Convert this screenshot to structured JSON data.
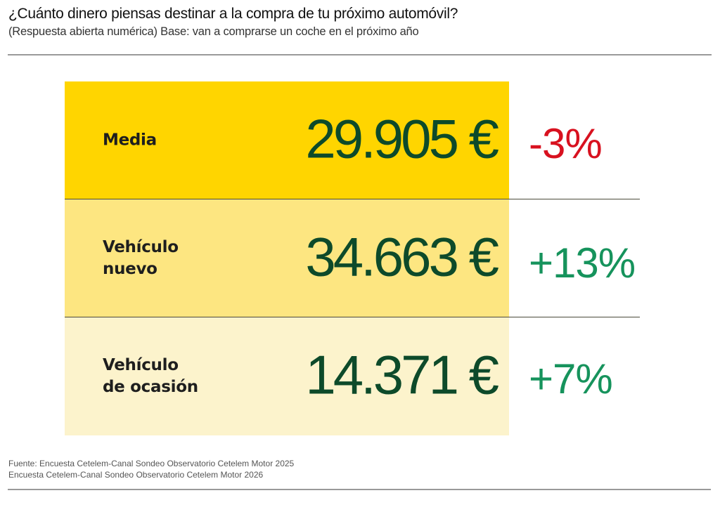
{
  "header": {
    "title": "¿Cuánto dinero piensas destinar a la compra de tu próximo automóvil?",
    "subtitle": "(Respuesta abierta numérica) Base: van a comprarse un coche en el próximo año"
  },
  "rows": [
    {
      "label_lines": [
        "Media"
      ],
      "amount": "29.905 €",
      "change": "-3%",
      "background": "#ffd500",
      "change_color": "#d8111f"
    },
    {
      "label_lines": [
        "Vehículo",
        "nuevo"
      ],
      "amount": "34.663 €",
      "change": "+13%",
      "background": "#fde681",
      "change_color": "#16935c"
    },
    {
      "label_lines": [
        "Vehículo",
        "de ocasión"
      ],
      "amount": "14.371 €",
      "change": "+7%",
      "background": "#fcf3cc",
      "change_color": "#16935c"
    }
  ],
  "footer": {
    "source_lines": [
      "Fuente: Encuesta Cetelem-Canal Sondeo Observatorio Cetelem Motor 2025",
      "Encuesta Cetelem-Canal Sondeo Observatorio Cetelem Motor 2026"
    ]
  }
}
